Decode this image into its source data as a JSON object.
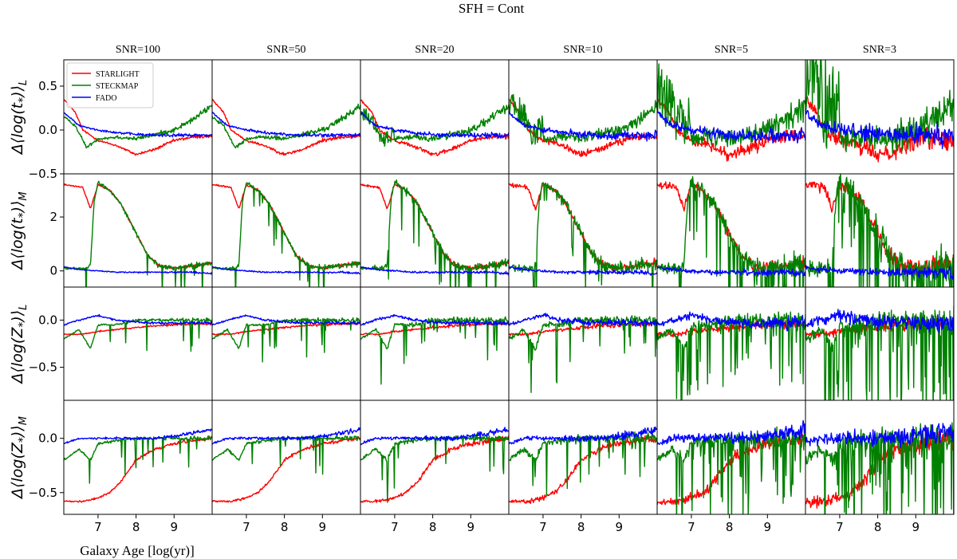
{
  "chart_data": {
    "type": "line",
    "title": "SFH = Cont",
    "xlabel": "Galaxy Age [log(yr)]",
    "xlim": [
      6.1,
      10.0
    ],
    "x_ticks": [
      7,
      8,
      9
    ],
    "x_tick_labels": [
      "7",
      "8",
      "9"
    ],
    "snr_columns": [
      "SNR=100",
      "SNR=50",
      "SNR=20",
      "SNR=10",
      "SNR=5",
      "SNR=3"
    ],
    "noise_scale": [
      0.02,
      0.04,
      0.09,
      0.2,
      0.4,
      0.65
    ],
    "legend": {
      "position": "top-left",
      "entries": [
        {
          "name": "STARLIGHT",
          "color": "#ff0000"
        },
        {
          "name": "STECKMAP",
          "color": "#008000"
        },
        {
          "name": "FADO",
          "color": "#0000ff"
        }
      ]
    },
    "rows": [
      {
        "ylabel": "Δ⟨log(t*)⟩L",
        "ylabel_main": "Δ⟨log(t",
        "ylabel_star": "*",
        "ylabel_close": ")⟩",
        "ylabel_sub": "L",
        "ylim": [
          -0.5,
          0.8
        ],
        "y_ticks": [
          -0.5,
          0.0,
          0.5
        ],
        "y_tick_labels": [
          "−0.5",
          "0.0",
          "0.5"
        ],
        "series": [
          {
            "name": "STARLIGHT",
            "color": "#ff0000",
            "noise": 0.05,
            "x": [
              6.1,
              6.4,
              6.6,
              7.0,
              7.5,
              8.0,
              8.5,
              9.0,
              9.5,
              10.0
            ],
            "y": [
              0.35,
              0.2,
              0.0,
              -0.12,
              -0.18,
              -0.28,
              -0.22,
              -0.12,
              -0.08,
              -0.07
            ]
          },
          {
            "name": "STECKMAP",
            "color": "#008000",
            "noise": 0.08,
            "x": [
              6.1,
              6.4,
              6.7,
              7.0,
              7.5,
              8.0,
              8.5,
              9.0,
              9.5,
              10.0
            ],
            "y": [
              0.15,
              0.05,
              -0.2,
              -0.1,
              -0.08,
              -0.1,
              -0.05,
              0.0,
              0.12,
              0.28
            ]
          },
          {
            "name": "FADO",
            "color": "#0000ff",
            "noise": 0.05,
            "x": [
              6.1,
              6.5,
              7.0,
              7.5,
              8.0,
              8.5,
              9.0,
              9.5,
              10.0
            ],
            "y": [
              0.2,
              0.05,
              0.0,
              -0.03,
              -0.05,
              -0.06,
              -0.06,
              -0.06,
              -0.06
            ]
          }
        ]
      },
      {
        "ylabel": "Δ⟨log(t*)⟩M",
        "ylabel_main": "Δ⟨log(t",
        "ylabel_star": "*",
        "ylabel_close": ")⟩",
        "ylabel_sub": "M",
        "ylim": [
          -0.6,
          3.6
        ],
        "y_ticks": [
          0,
          2
        ],
        "y_tick_labels": [
          "0",
          "2"
        ],
        "series": [
          {
            "name": "STARLIGHT",
            "color": "#ff0000",
            "noise": 0.15,
            "x": [
              6.1,
              6.6,
              6.8,
              7.0,
              7.3,
              7.6,
              8.0,
              8.3,
              8.6,
              9.0,
              9.5,
              10.0
            ],
            "y": [
              3.2,
              3.1,
              2.3,
              3.2,
              3.0,
              2.5,
              1.4,
              0.6,
              0.2,
              0.1,
              0.2,
              0.3
            ]
          },
          {
            "name": "STECKMAP",
            "color": "#008000",
            "noise": 0.25,
            "spikes": true,
            "x": [
              6.1,
              6.7,
              6.8,
              6.9,
              7.0,
              7.3,
              7.6,
              8.0,
              8.3,
              8.6,
              9.0,
              9.5,
              10.0
            ],
            "y": [
              0.1,
              0.1,
              0.2,
              2.6,
              3.3,
              3.0,
              2.5,
              1.4,
              0.6,
              0.2,
              0.1,
              0.2,
              0.3
            ]
          },
          {
            "name": "FADO",
            "color": "#0000ff",
            "noise": 0.08,
            "x": [
              6.1,
              6.5,
              7.0,
              7.5,
              8.0,
              8.5,
              9.0,
              9.5,
              10.0
            ],
            "y": [
              0.15,
              0.05,
              0.0,
              -0.05,
              -0.05,
              -0.05,
              -0.05,
              -0.05,
              -0.1
            ]
          }
        ]
      },
      {
        "ylabel": "Δ⟨log(Z*)⟩L",
        "ylabel_main": "Δ⟨log(Z",
        "ylabel_star": "*",
        "ylabel_close": ")⟩",
        "ylabel_sub": "L",
        "ylim": [
          -0.85,
          0.35
        ],
        "y_ticks": [
          -0.5,
          0.0
        ],
        "y_tick_labels": [
          "−0.5",
          "0.0"
        ],
        "series": [
          {
            "name": "STARLIGHT",
            "color": "#ff0000",
            "noise": 0.03,
            "x": [
              6.1,
              6.6,
              7.0,
              7.5,
              8.0,
              8.5,
              9.0,
              9.5,
              10.0
            ],
            "y": [
              -0.15,
              -0.15,
              -0.12,
              -0.1,
              -0.08,
              -0.06,
              -0.05,
              -0.04,
              -0.04
            ]
          },
          {
            "name": "STECKMAP",
            "color": "#008000",
            "noise": 0.05,
            "spikes": true,
            "x": [
              6.1,
              6.5,
              6.8,
              7.0,
              7.5,
              8.0,
              8.5,
              9.0,
              9.5,
              10.0
            ],
            "y": [
              -0.2,
              -0.1,
              -0.3,
              -0.05,
              -0.05,
              0.0,
              0.0,
              0.0,
              0.0,
              0.0
            ]
          },
          {
            "name": "FADO",
            "color": "#0000ff",
            "noise": 0.04,
            "x": [
              6.1,
              6.5,
              7.0,
              7.5,
              8.0,
              8.5,
              9.0,
              9.5,
              10.0
            ],
            "y": [
              -0.05,
              0.0,
              0.05,
              0.0,
              -0.02,
              -0.03,
              -0.03,
              -0.03,
              -0.03
            ]
          }
        ]
      },
      {
        "ylabel": "Δ⟨log(Z*)⟩M",
        "ylabel_main": "Δ⟨log(Z",
        "ylabel_star": "*",
        "ylabel_close": ")⟩",
        "ylabel_sub": "M",
        "ylim": [
          -0.7,
          0.35
        ],
        "y_ticks": [
          -0.5,
          0.0
        ],
        "y_tick_labels": [
          "−0.5",
          "0.0"
        ],
        "series": [
          {
            "name": "STARLIGHT",
            "color": "#ff0000",
            "noise": 0.04,
            "x": [
              6.1,
              6.6,
              7.0,
              7.3,
              7.6,
              8.0,
              8.5,
              9.0,
              9.5,
              10.0
            ],
            "y": [
              -0.58,
              -0.58,
              -0.55,
              -0.5,
              -0.4,
              -0.2,
              -0.1,
              -0.05,
              -0.02,
              0.0
            ]
          },
          {
            "name": "STECKMAP",
            "color": "#008000",
            "noise": 0.05,
            "spikes": true,
            "x": [
              6.1,
              6.5,
              6.8,
              7.0,
              7.5,
              8.0,
              8.5,
              9.0,
              9.5,
              10.0
            ],
            "y": [
              -0.2,
              -0.1,
              -0.2,
              -0.05,
              -0.02,
              0.0,
              0.0,
              0.0,
              0.0,
              0.0
            ]
          },
          {
            "name": "FADO",
            "color": "#0000ff",
            "noise": 0.04,
            "x": [
              6.1,
              6.5,
              7.0,
              7.5,
              8.0,
              8.5,
              9.0,
              9.5,
              10.0
            ],
            "y": [
              -0.05,
              0.0,
              0.0,
              0.0,
              0.0,
              0.0,
              0.02,
              0.05,
              0.08
            ]
          }
        ]
      }
    ]
  }
}
